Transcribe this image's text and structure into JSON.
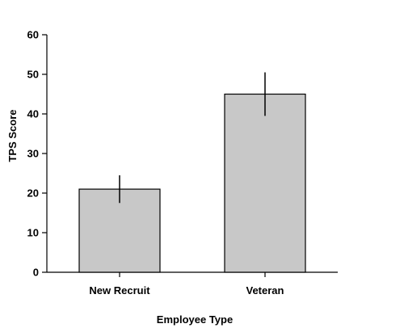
{
  "chart_data": {
    "type": "bar",
    "xlabel": "Employee Type",
    "ylabel": "TPS Score",
    "ylim": [
      0,
      60
    ],
    "yticks": [
      0,
      10,
      20,
      30,
      40,
      50,
      60
    ],
    "categories": [
      "New Recruit",
      "Veteran"
    ],
    "values": [
      21,
      45
    ],
    "error_low": [
      17.5,
      39.5
    ],
    "error_high": [
      24.5,
      50.5
    ],
    "colors": {
      "bar": "#c8c8c8",
      "stroke": "#000000"
    },
    "grid": false,
    "legend": "none"
  }
}
